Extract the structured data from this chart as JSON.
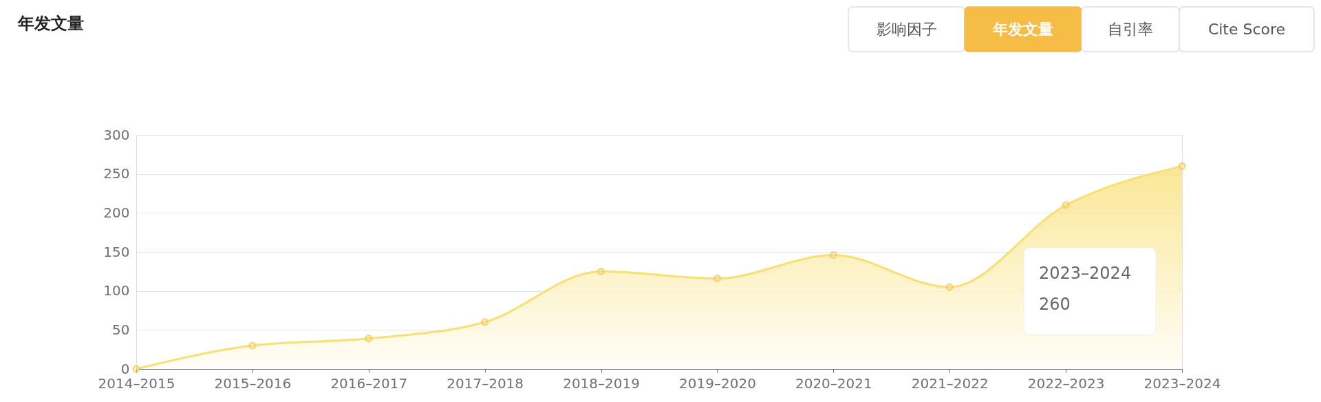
{
  "chart_data": {
    "type": "area",
    "title": "年发文量",
    "categories": [
      "2014–2015",
      "2015–2016",
      "2016–2017",
      "2017–2018",
      "2018–2019",
      "2019–2020",
      "2020–2021",
      "2021–2022",
      "2022–2023",
      "2023–2024"
    ],
    "series": [
      {
        "color": "#f9df72",
        "values": [
          0,
          30,
          39,
          60,
          125,
          116,
          146,
          105,
          210,
          260
        ]
      }
    ],
    "ylim": [
      0,
      300
    ],
    "yticks": [
      0,
      50,
      100,
      150,
      200,
      250,
      300
    ],
    "grid": "y",
    "marker": "circle",
    "annotations": [
      "影响因子",
      "年发文量",
      "自引率",
      "Cite Score",
      "2023–2024",
      "260"
    ]
  }
}
